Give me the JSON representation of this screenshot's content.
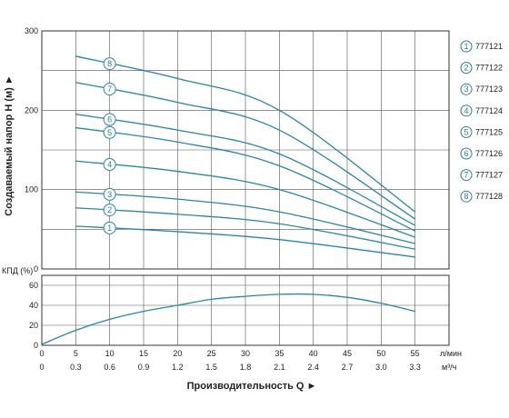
{
  "chart_data": [
    {
      "type": "line",
      "ylabel": "Создаваемый напор H (м)",
      "ylim": [
        0,
        300
      ],
      "yticks": [
        0,
        100,
        200,
        300
      ],
      "xlim": [
        0,
        60
      ],
      "grid": true,
      "legend_position": "right",
      "series": [
        {
          "name": "777121",
          "label": "1",
          "x": [
            5,
            20,
            35,
            55
          ],
          "y": [
            54,
            47,
            37,
            15
          ]
        },
        {
          "name": "777122",
          "label": "2",
          "x": [
            5,
            20,
            35,
            55
          ],
          "y": [
            77,
            69,
            57,
            25
          ]
        },
        {
          "name": "777123",
          "label": "3",
          "x": [
            5,
            20,
            35,
            55
          ],
          "y": [
            97,
            88,
            72,
            32
          ]
        },
        {
          "name": "777124",
          "label": "4",
          "x": [
            5,
            20,
            35,
            55
          ],
          "y": [
            136,
            123,
            100,
            40
          ]
        },
        {
          "name": "777125",
          "label": "5",
          "x": [
            5,
            20,
            35,
            55
          ],
          "y": [
            178,
            160,
            130,
            48
          ]
        },
        {
          "name": "777126",
          "label": "6",
          "x": [
            5,
            20,
            35,
            55
          ],
          "y": [
            195,
            175,
            145,
            55
          ]
        },
        {
          "name": "777127",
          "label": "7",
          "x": [
            5,
            20,
            35,
            55
          ],
          "y": [
            235,
            210,
            175,
            63
          ]
        },
        {
          "name": "777128",
          "label": "8",
          "x": [
            5,
            20,
            35,
            55
          ],
          "y": [
            268,
            240,
            200,
            72
          ]
        }
      ]
    },
    {
      "type": "line",
      "ylabel": "КПД (%)",
      "ylim": [
        0,
        70
      ],
      "yticks": [
        0,
        20,
        40,
        60
      ],
      "xlim": [
        0,
        60
      ],
      "grid": true,
      "series": [
        {
          "x": [
            0,
            5,
            10,
            15,
            20,
            25,
            30,
            35,
            40,
            45,
            50,
            55
          ],
          "y": [
            1,
            15,
            26,
            34,
            40,
            46,
            49,
            51,
            51,
            48,
            42,
            34
          ]
        }
      ]
    }
  ],
  "x_axis_lpm": {
    "ticks": [
      "0",
      "5",
      "10",
      "15",
      "20",
      "25",
      "30",
      "35",
      "40",
      "45",
      "50",
      "55"
    ],
    "unit": "л/мин"
  },
  "x_axis_m3h": {
    "ticks": [
      "0",
      "0.3",
      "0.6",
      "0.9",
      "1.2",
      "1.5",
      "1.8",
      "2.1",
      "2.4",
      "2.7",
      "3.0",
      "3.3"
    ],
    "unit": "м³/ч"
  },
  "xlabel": "Производительность Q ►",
  "ylabel_top_arrow": "Создаваемый напор H (м) ►",
  "colors": {
    "curve": "#2a86a6",
    "grid": "#555555",
    "frame": "#333333",
    "legend": "#2a7f9c"
  }
}
